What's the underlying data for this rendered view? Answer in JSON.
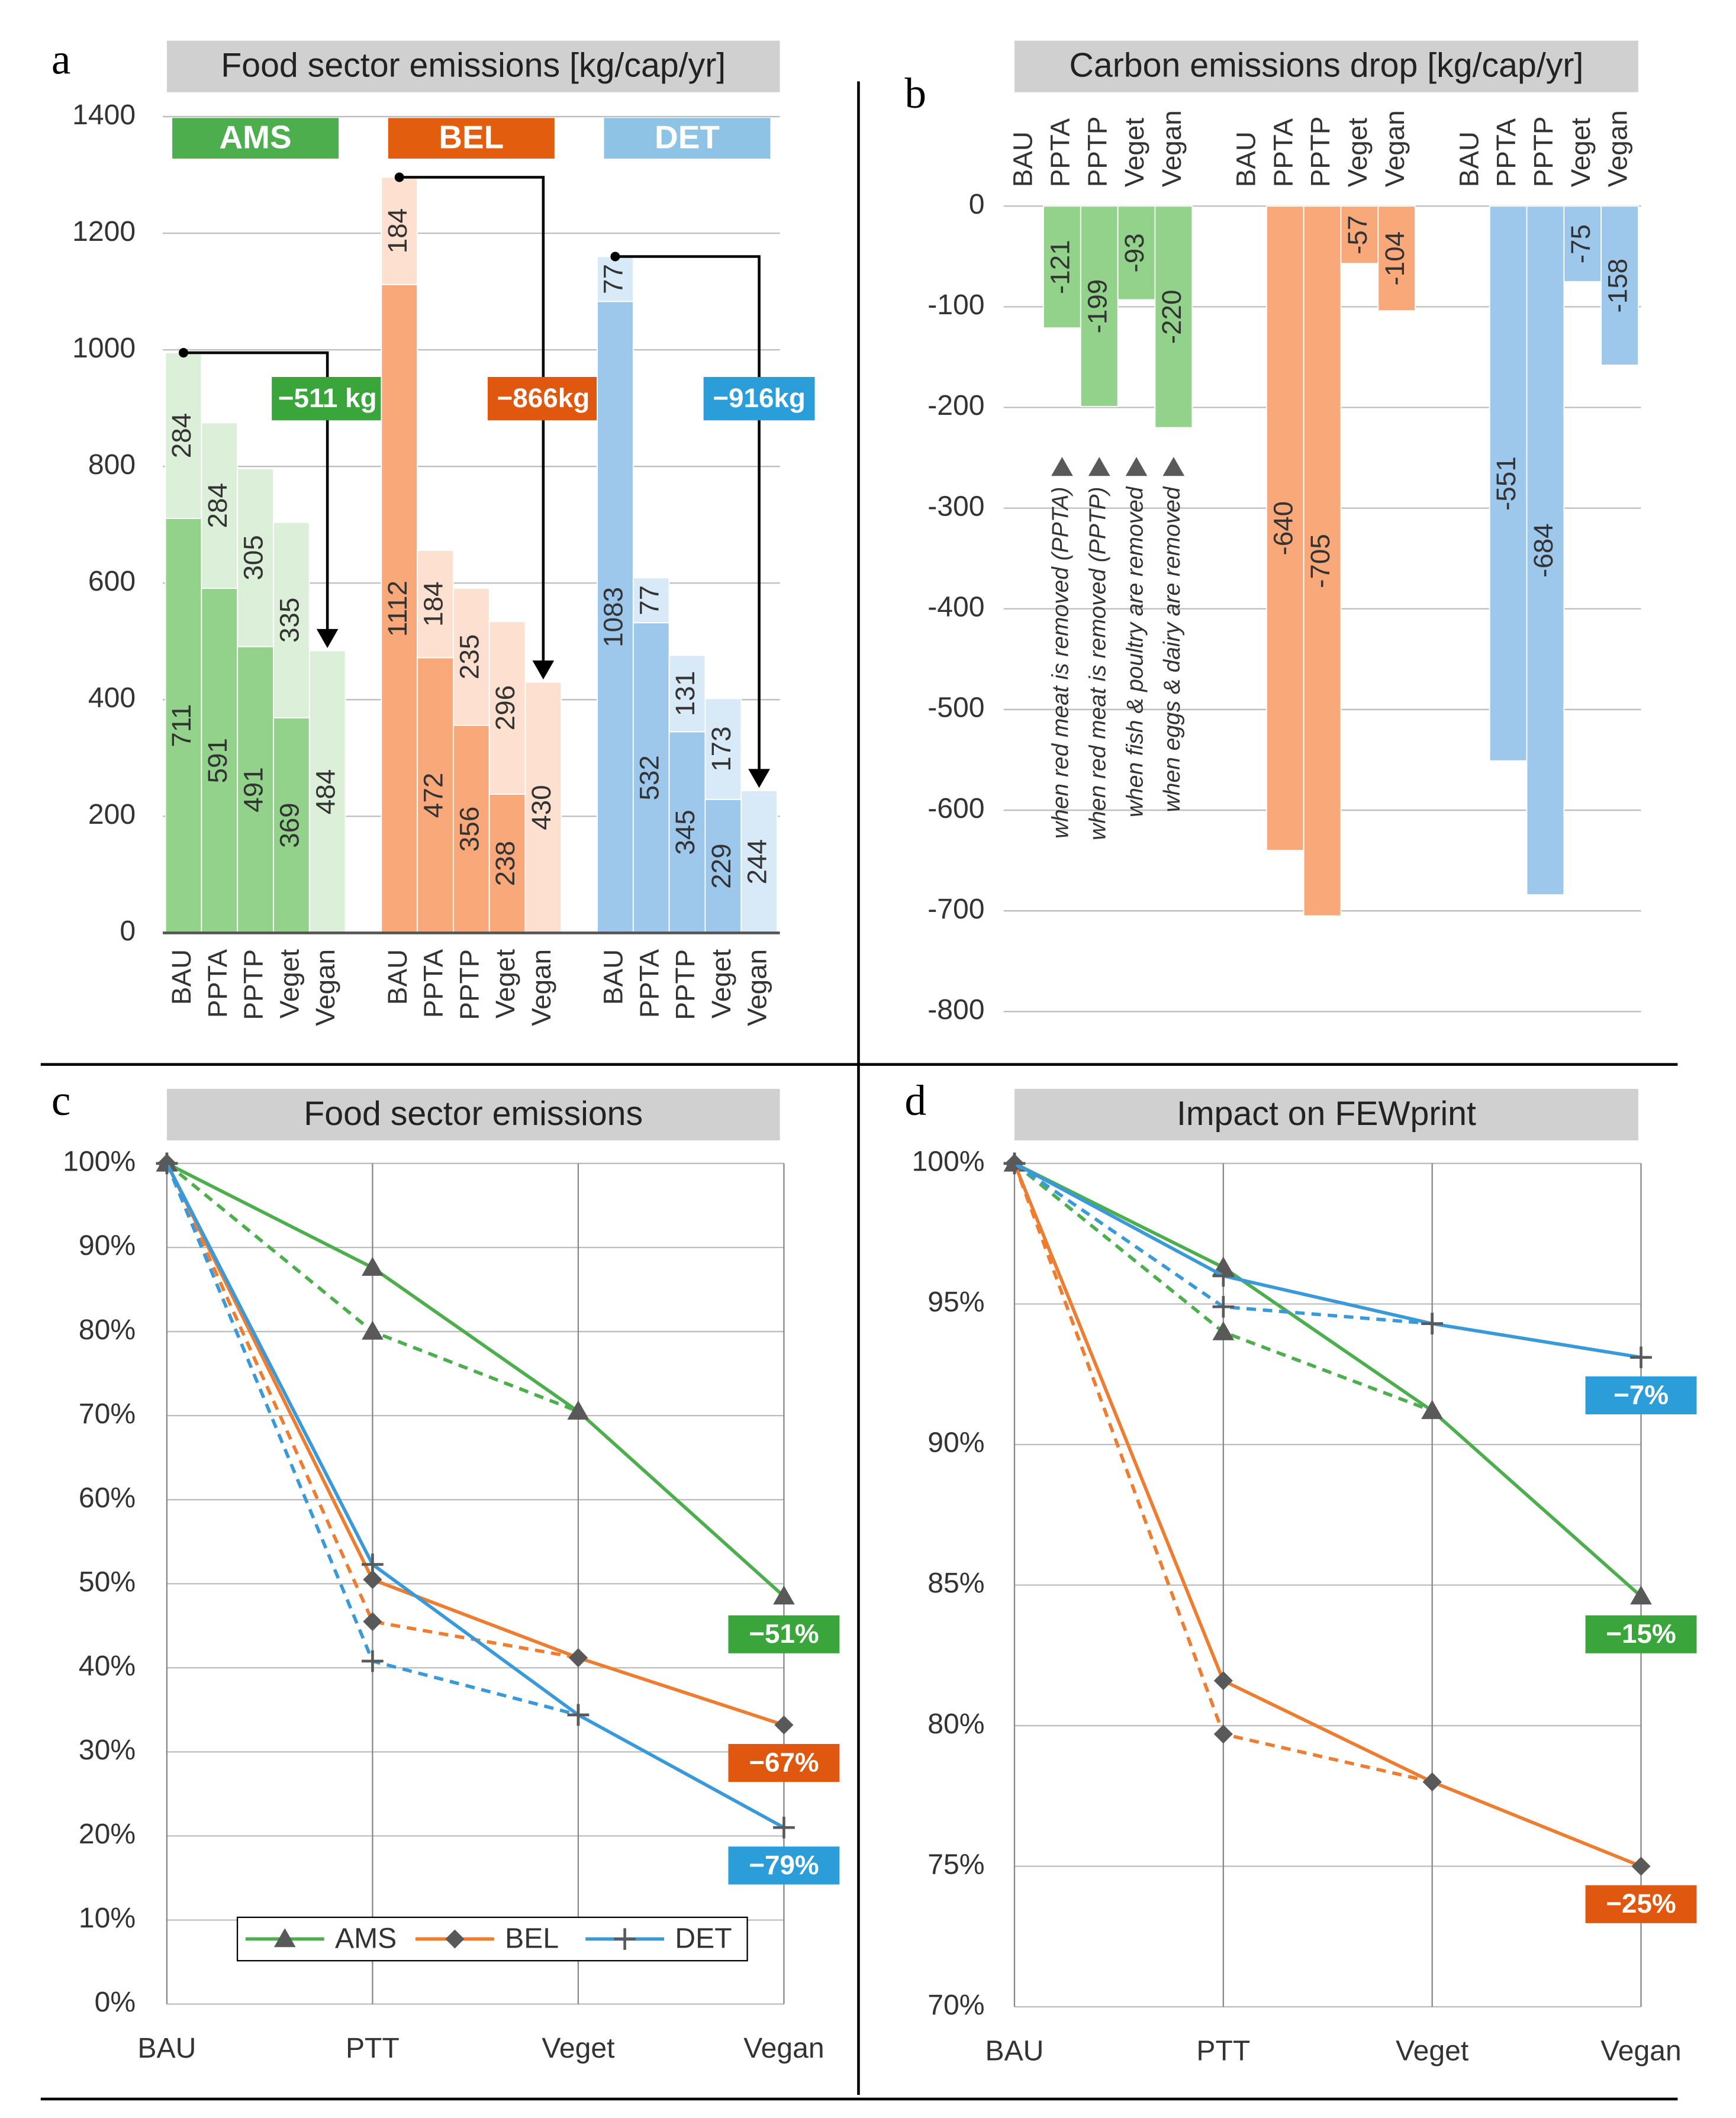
{
  "chart_data": [
    {
      "type": "bar",
      "panel": "a",
      "title": "Food sector emissions [kg/cap/yr]",
      "ylim": [
        0,
        1400
      ],
      "yticks": [
        0,
        200,
        400,
        600,
        800,
        1000,
        1200,
        1400
      ],
      "groups": [
        {
          "name": "AMS",
          "color": "#4cae4c",
          "annotation": "−511 kg",
          "annotation_color": "#3aa53a",
          "categories": [
            "BAU",
            "PPTA",
            "PPTP",
            "Veget",
            "Vegan"
          ],
          "series": [
            {
              "color": "#92d28a",
              "values": [
                711,
                591,
                491,
                369,
                null
              ]
            },
            {
              "color": "#dcefd8",
              "values": [
                284,
                284,
                305,
                335,
                484
              ]
            }
          ]
        },
        {
          "name": "BEL",
          "color": "#e35d0e",
          "annotation": "−866kg",
          "annotation_color": "#e0580f",
          "categories": [
            "BAU",
            "PPTA",
            "PPTP",
            "Veget",
            "Vegan"
          ],
          "series": [
            {
              "color": "#f9a87a",
              "values": [
                1112,
                472,
                356,
                238,
                null
              ]
            },
            {
              "color": "#fde0cf",
              "values": [
                184,
                184,
                235,
                296,
                430
              ]
            }
          ]
        },
        {
          "name": "DET",
          "color": "#8ec3e6",
          "annotation": "−916kg",
          "annotation_color": "#2b9ed9",
          "categories": [
            "BAU",
            "PPTA",
            "PPTP",
            "Veget",
            "Vegan"
          ],
          "series": [
            {
              "color": "#9dc8ec",
              "values": [
                1083,
                532,
                345,
                229,
                null
              ]
            },
            {
              "color": "#d8eaf8",
              "values": [
                77,
                77,
                131,
                173,
                244
              ]
            }
          ]
        }
      ]
    },
    {
      "type": "bar",
      "panel": "b",
      "title": "Carbon emissions drop [kg/cap/yr]",
      "ylim": [
        -800,
        0
      ],
      "yticks": [
        0,
        -100,
        -200,
        -300,
        -400,
        -500,
        -600,
        -700,
        -800
      ],
      "groups": [
        {
          "color": "#92d28a",
          "categories": [
            "BAU",
            "PPTA",
            "PPTP",
            "Veget",
            "Vegan"
          ],
          "values": [
            null,
            -121,
            -199,
            -93,
            -220
          ]
        },
        {
          "color": "#f9a87a",
          "categories": [
            "BAU",
            "PPTA",
            "PPTP",
            "Veget",
            "Vegan"
          ],
          "values": [
            null,
            -640,
            -705,
            -57,
            -104
          ]
        },
        {
          "color": "#9dc8ec",
          "categories": [
            "BAU",
            "PPTA",
            "PPTP",
            "Veget",
            "Vegan"
          ],
          "values": [
            null,
            -551,
            -684,
            -75,
            -158
          ]
        }
      ],
      "notes": [
        "when red meat is removed (PPTA)",
        "when red meat is removed (PPTP)",
        "when fish & poultry are removed",
        "when eggs & dairy are removed"
      ]
    },
    {
      "type": "line",
      "panel": "c",
      "title": "Food sector emissions",
      "categories": [
        "BAU",
        "PTT",
        "Veget",
        "Vegan"
      ],
      "ylim": [
        0,
        100
      ],
      "yticks": [
        {
          "value": 0,
          "label": "0%"
        },
        {
          "value": 10,
          "label": "10%"
        },
        {
          "value": 20,
          "label": "20%"
        },
        {
          "value": 30,
          "label": "30%"
        },
        {
          "value": 40,
          "label": "40%"
        },
        {
          "value": 50,
          "label": "50%"
        },
        {
          "value": 60,
          "label": "60%"
        },
        {
          "value": 70,
          "label": "70%"
        },
        {
          "value": 80,
          "label": "80%"
        },
        {
          "value": 90,
          "label": "90%"
        },
        {
          "value": 100,
          "label": "100%"
        }
      ],
      "legend": "bottom",
      "series": [
        {
          "name": "AMS",
          "color": "#4cae4c",
          "marker": "triangle",
          "values": [
            100,
            87.6,
            70.5,
            48.5
          ],
          "dashed_values": [
            100,
            80,
            70.5,
            null
          ],
          "label": "−51%",
          "label_color": "#3aa53a"
        },
        {
          "name": "BEL",
          "color": "#ed7d31",
          "marker": "diamond",
          "values": [
            100,
            50.5,
            41.2,
            33.2
          ],
          "dashed_values": [
            100,
            45.5,
            41.2,
            null
          ],
          "label": "−67%",
          "label_color": "#e0580f"
        },
        {
          "name": "DET",
          "color": "#3a9ad9",
          "marker": "plus",
          "values": [
            100,
            52.3,
            34.4,
            21
          ],
          "dashed_values": [
            100,
            40.8,
            34.4,
            null
          ],
          "label": "−79%",
          "label_color": "#2b9ed9"
        }
      ]
    },
    {
      "type": "line",
      "panel": "d",
      "title": "Impact on FEWprint",
      "categories": [
        "BAU",
        "PTT",
        "Veget",
        "Vegan"
      ],
      "ylim": [
        70,
        100
      ],
      "yticks": [
        {
          "value": 70,
          "label": "70%"
        },
        {
          "value": 75,
          "label": "75%"
        },
        {
          "value": 80,
          "label": "80%"
        },
        {
          "value": 85,
          "label": "85%"
        },
        {
          "value": 90,
          "label": "90%"
        },
        {
          "value": 95,
          "label": "95%"
        },
        {
          "value": 100,
          "label": "100%"
        }
      ],
      "series": [
        {
          "color": "#4cae4c",
          "marker": "triangle",
          "values": [
            100,
            96.3,
            91.2,
            84.6
          ],
          "dashed_values": [
            100,
            94,
            91.2,
            null
          ],
          "label": "−15%",
          "label_color": "#3aa53a"
        },
        {
          "color": "#ed7d31",
          "marker": "diamond",
          "values": [
            100,
            81.6,
            78,
            75
          ],
          "dashed_values": [
            100,
            79.7,
            78,
            null
          ],
          "label": "−25%",
          "label_color": "#e0580f"
        },
        {
          "color": "#3a9ad9",
          "marker": "plus",
          "values": [
            100,
            96,
            94.3,
            93.1
          ],
          "dashed_values": [
            100,
            94.9,
            94.3,
            null
          ],
          "label": "−7%",
          "label_color": "#2b9ed9"
        }
      ]
    }
  ]
}
